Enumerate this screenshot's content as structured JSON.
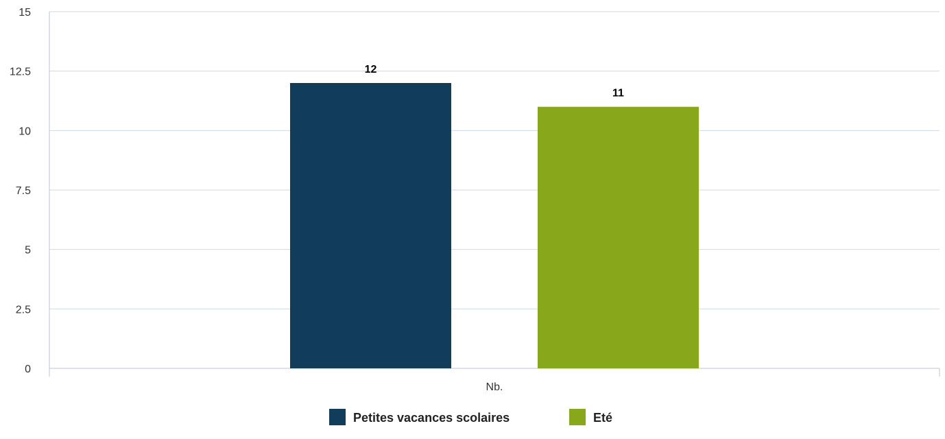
{
  "chart_data": {
    "type": "bar",
    "title": "",
    "xlabel": "",
    "ylabel": "",
    "categories": [
      "Nb."
    ],
    "series": [
      {
        "name": "Petites vacances scolaires",
        "values": [
          12
        ],
        "color": "#113d5a"
      },
      {
        "name": "Eté",
        "values": [
          11
        ],
        "color": "#87a81b"
      }
    ],
    "ylim": [
      0,
      15
    ],
    "yticks": [
      "0",
      "2.5",
      "5",
      "7.5",
      "10",
      "12.5",
      "15"
    ],
    "data_labels": [
      "12",
      "11"
    ],
    "grid": true,
    "legend_position": "bottom-center"
  },
  "colors": {
    "grid": "#cfd8e3",
    "axis": "#b7c4d3"
  }
}
